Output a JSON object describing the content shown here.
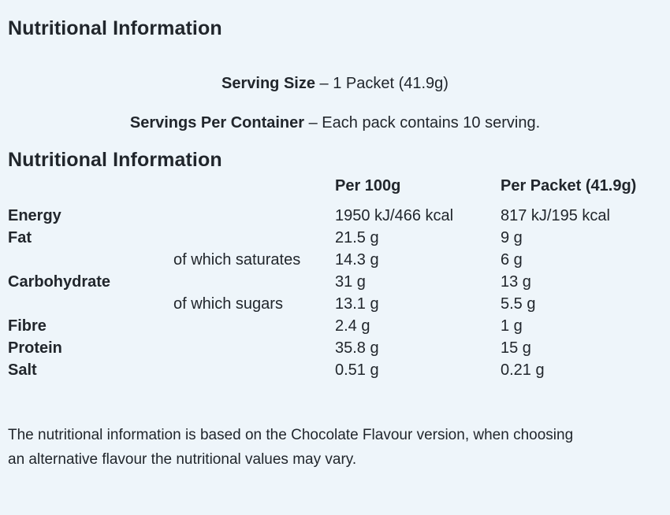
{
  "page": {
    "background_color": "#eef5fa",
    "text_color": "#21262c"
  },
  "header": {
    "title": "Nutritional Information"
  },
  "serving": {
    "size_label": "Serving Size",
    "size_separator": " – ",
    "size_value": "1 Packet (41.9g)",
    "per_container_label": "Servings Per Container",
    "per_container_separator": " – ",
    "per_container_value": "Each pack contains 10 serving."
  },
  "table": {
    "title": "Nutritional Information",
    "col_per100": "Per 100g",
    "col_perPacket": "Per Packet (41.9g)",
    "rows": [
      {
        "name": "Energy",
        "sub": "",
        "per100": "1950 kJ/466 kcal",
        "perPacket": "817 kJ/195 kcal"
      },
      {
        "name": "Fat",
        "sub": "",
        "per100": "21.5 g",
        "perPacket": "9 g"
      },
      {
        "name": "",
        "sub": "of which saturates",
        "per100": "14.3 g",
        "perPacket": "6 g"
      },
      {
        "name": "Carbohydrate",
        "sub": "",
        "per100": "31 g",
        "perPacket": "13 g"
      },
      {
        "name": "",
        "sub": "of which sugars",
        "per100": "13.1 g",
        "perPacket": "5.5 g"
      },
      {
        "name": "Fibre",
        "sub": "",
        "per100": "2.4 g",
        "perPacket": "1 g"
      },
      {
        "name": "Protein",
        "sub": "",
        "per100": "35.8 g",
        "perPacket": "15 g"
      },
      {
        "name": "Salt",
        "sub": "",
        "per100": "0.51 g",
        "perPacket": "0.21 g"
      }
    ]
  },
  "footnote": {
    "text": "The nutritional information is based on the Chocolate Flavour version, when choosing an alternative flavour the nutritional values may vary."
  }
}
